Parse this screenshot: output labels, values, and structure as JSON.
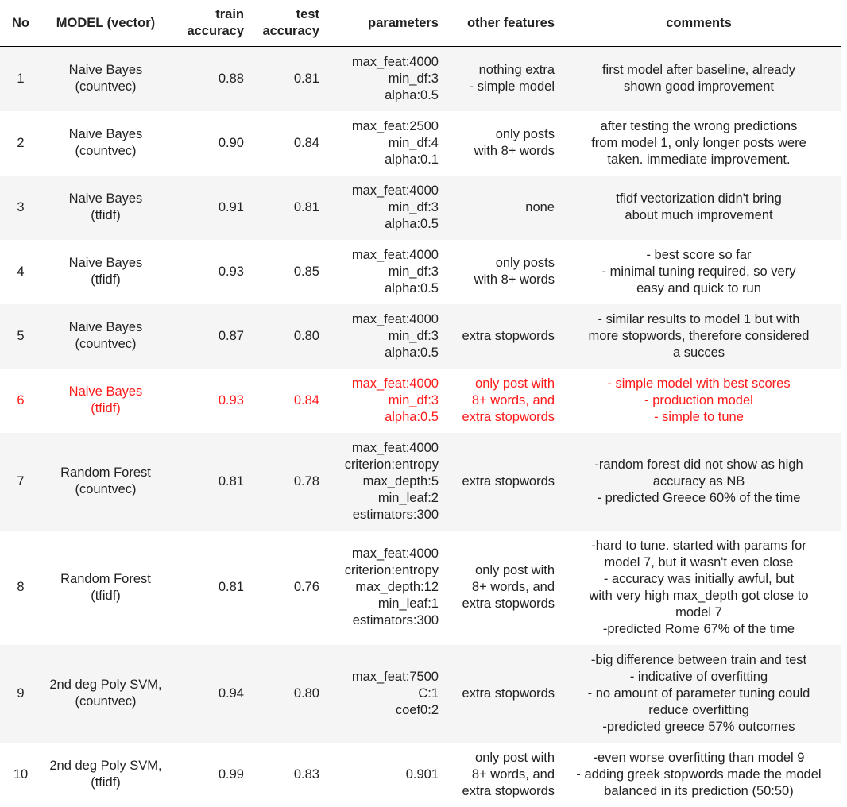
{
  "table": {
    "headers": {
      "no": "No",
      "model": "MODEL (vector)",
      "train": [
        "train",
        "accuracy"
      ],
      "test": [
        "test",
        "accuracy"
      ],
      "parameters": "parameters",
      "other": "other features",
      "comments": "comments"
    },
    "rows": [
      {
        "no": "1",
        "model": [
          "Naive Bayes",
          "(countvec)"
        ],
        "train": "0.88",
        "test": "0.81",
        "parameters": [
          "max_feat:4000",
          "min_df:3",
          "alpha:0.5"
        ],
        "other": [
          "nothing extra",
          "- simple model"
        ],
        "comments": [
          "first model after baseline, already",
          "shown good improvement"
        ]
      },
      {
        "no": "2",
        "model": [
          "Naive Bayes",
          "(countvec)"
        ],
        "train": "0.90",
        "test": "0.84",
        "parameters": [
          "max_feat:2500",
          "min_df:4",
          "alpha:0.1"
        ],
        "other": [
          "only posts",
          "with 8+ words"
        ],
        "comments": [
          "after testing the wrong predictions",
          "from model 1, only longer posts were",
          "taken. immediate improvement."
        ]
      },
      {
        "no": "3",
        "model": [
          "Naive Bayes",
          "(tfidf)"
        ],
        "train": "0.91",
        "test": "0.81",
        "parameters": [
          "max_feat:4000",
          "min_df:3",
          "alpha:0.5"
        ],
        "other": [
          "none"
        ],
        "comments": [
          "tfidf vectorization didn't bring",
          "about much improvement"
        ]
      },
      {
        "no": "4",
        "model": [
          "Naive Bayes",
          "(tfidf)"
        ],
        "train": "0.93",
        "test": "0.85",
        "parameters": [
          "max_feat:4000",
          "min_df:3",
          "alpha:0.5"
        ],
        "other": [
          "only posts",
          "with 8+ words"
        ],
        "comments": [
          "- best score so far",
          "- minimal tuning required, so very",
          "easy and quick to run"
        ]
      },
      {
        "no": "5",
        "model": [
          "Naive Bayes",
          "(countvec)"
        ],
        "train": "0.87",
        "test": "0.80",
        "parameters": [
          "max_feat:4000",
          "min_df:3",
          "alpha:0.5"
        ],
        "other": [
          "extra stopwords"
        ],
        "comments": [
          "- similar results to model 1 but with",
          "more stopwords, therefore considered",
          "a succes"
        ]
      },
      {
        "no": "6",
        "highlight": true,
        "model": [
          "Naive Bayes",
          "(tfidf)"
        ],
        "train": "0.93",
        "test": "0.84",
        "parameters": [
          "max_feat:4000",
          "min_df:3",
          "alpha:0.5"
        ],
        "other": [
          "only post with",
          "8+ words, and",
          "extra stopwords"
        ],
        "comments": [
          "- simple model with best scores",
          "- production model",
          "- simple to tune"
        ]
      },
      {
        "no": "7",
        "model": [
          "Random Forest",
          "(countvec)"
        ],
        "train": "0.81",
        "test": "0.78",
        "parameters": [
          "max_feat:4000",
          "criterion:entropy",
          "max_depth:5",
          "min_leaf:2",
          "estimators:300"
        ],
        "other": [
          "extra stopwords"
        ],
        "comments": [
          "-random forest did not show as high",
          "accuracy as NB",
          "- predicted Greece 60% of the time"
        ]
      },
      {
        "no": "8",
        "model": [
          "Random Forest",
          "(tfidf)"
        ],
        "train": "0.81",
        "test": "0.76",
        "parameters": [
          "max_feat:4000",
          "criterion:entropy",
          "max_depth:12",
          "min_leaf:1",
          "estimators:300"
        ],
        "other": [
          "only post with",
          "8+ words, and",
          "extra stopwords"
        ],
        "comments": [
          "-hard to tune. started with params for",
          "model 7, but it wasn't even close",
          "- accuracy was initially awful, but",
          "with very high max_depth got close to",
          "model 7",
          "-predicted Rome 67% of the time"
        ]
      },
      {
        "no": "9",
        "model": [
          "2nd deg Poly SVM,",
          "(countvec)"
        ],
        "train": "0.94",
        "test": "0.80",
        "parameters": [
          "max_feat:7500",
          "C:1",
          "coef0:2"
        ],
        "other": [
          "extra stopwords"
        ],
        "comments": [
          "-big difference between train and test",
          "- indicative of overfitting",
          "- no amount of parameter tuning could",
          "reduce overfitting",
          "-predicted greece 57% outcomes"
        ]
      },
      {
        "no": "10",
        "model": [
          "2nd deg Poly SVM,",
          "(tfidf)"
        ],
        "train": "0.99",
        "test": "0.83",
        "parameters": [
          "0.901"
        ],
        "other": [
          "only post with",
          "8+ words, and",
          "extra stopwords"
        ],
        "comments": [
          "-even worse overfitting than model 9",
          "- adding greek stopwords made the model",
          "balanced in its prediction (50:50)"
        ]
      }
    ]
  }
}
